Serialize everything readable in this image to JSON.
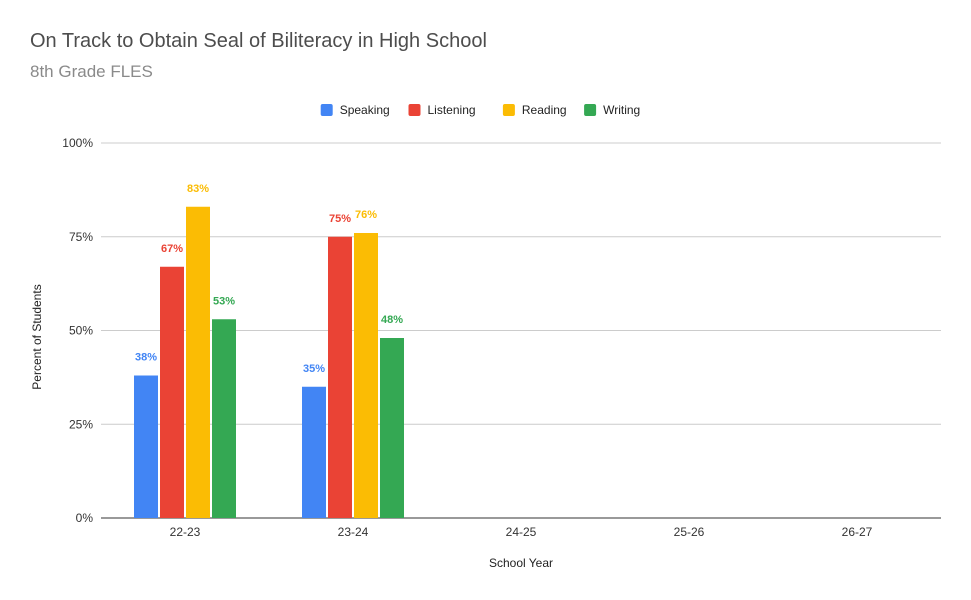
{
  "chart_data": {
    "type": "bar",
    "title": "On Track to Obtain Seal of Biliteracy in High School",
    "subtitle": "8th Grade FLES",
    "xlabel": "School Year",
    "ylabel": "Percent of Students",
    "ylim": [
      0,
      100
    ],
    "yticks": [
      "0%",
      "25%",
      "50%",
      "75%",
      "100%"
    ],
    "ytick_values": [
      0,
      25,
      50,
      75,
      100
    ],
    "grid": true,
    "legend_position": "top",
    "categories": [
      "22-23",
      "23-24",
      "24-25",
      "25-26",
      "26-27"
    ],
    "series": [
      {
        "name": "Speaking",
        "color": "#4285f4",
        "values": [
          38,
          35,
          null,
          null,
          null
        ],
        "labels": [
          "38%",
          "35%",
          "",
          "",
          ""
        ]
      },
      {
        "name": "Listening",
        "color": "#ea4335",
        "values": [
          67,
          75,
          null,
          null,
          null
        ],
        "labels": [
          "67%",
          "75%",
          "",
          "",
          ""
        ]
      },
      {
        "name": "Reading",
        "color": "#fbbc04",
        "values": [
          83,
          76,
          null,
          null,
          null
        ],
        "labels": [
          "83%",
          "76%",
          "",
          "",
          ""
        ]
      },
      {
        "name": "Writing",
        "color": "#34a853",
        "values": [
          53,
          48,
          null,
          null,
          null
        ],
        "labels": [
          "53%",
          "48%",
          "",
          "",
          ""
        ]
      }
    ]
  }
}
